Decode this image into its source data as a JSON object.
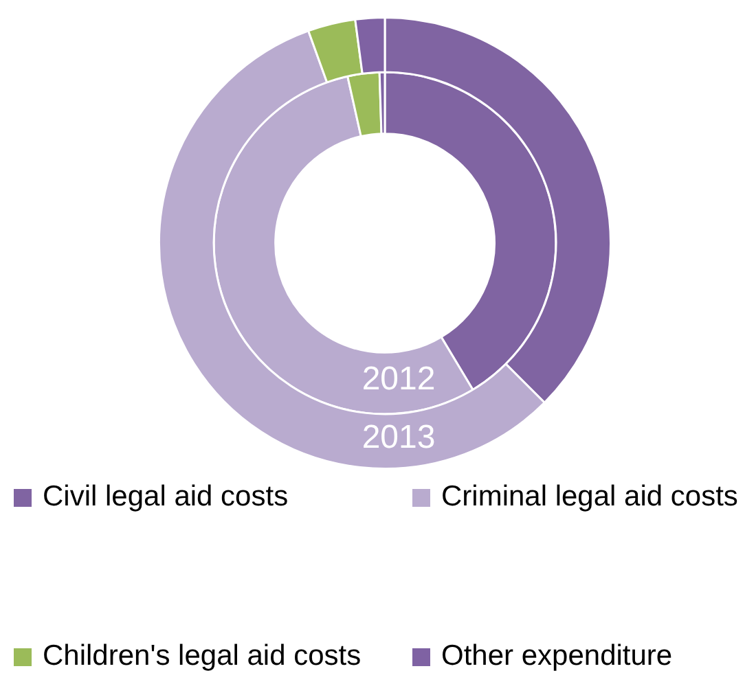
{
  "chart_data": {
    "type": "donut",
    "categories": [
      "Civil legal aid costs",
      "Criminal legal aid costs",
      "Children's legal aid costs",
      "Other expenditure"
    ],
    "colors": [
      "#8064a2",
      "#b9abcf",
      "#9bbb59",
      "#7f62a3"
    ],
    "series": [
      {
        "name": "2013",
        "values": [
          37.5,
          57.0,
          3.4,
          2.1
        ]
      },
      {
        "name": "2012",
        "values": [
          41.4,
          55.1,
          3.0,
          0.5
        ]
      }
    ],
    "legend": "bottom"
  }
}
